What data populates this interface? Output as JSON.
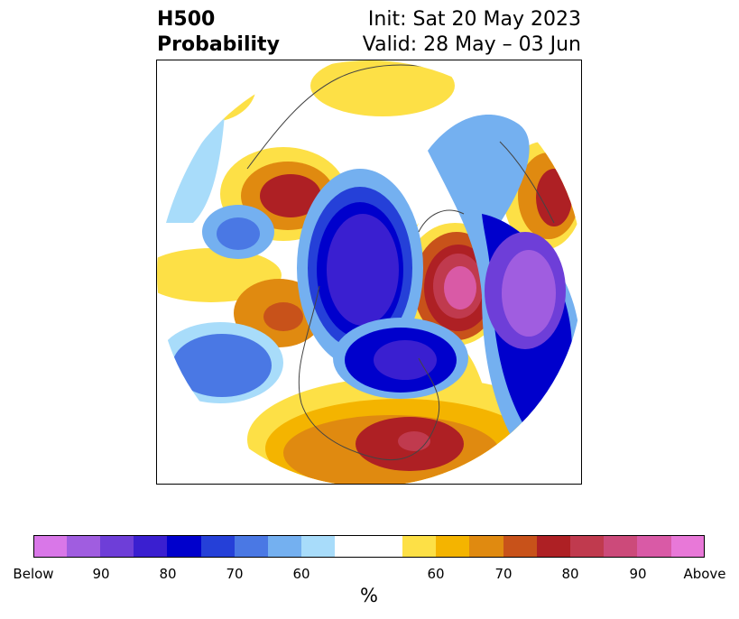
{
  "title": {
    "left_line1": "H500",
    "left_line2": "Probability",
    "right_line1": "Init: Sat 20 May 2023",
    "right_line2": "Valid: 28 May – 03 Jun"
  },
  "colorbar": {
    "unit": "%",
    "colors": [
      "#d977e8",
      "#a05de0",
      "#6e3ed8",
      "#3a1fd0",
      "#0000cc",
      "#2540d8",
      "#4a78e4",
      "#74b0f0",
      "#a8dcfa",
      "#ffffff",
      "#fde046",
      "#f4b400",
      "#e08a10",
      "#c8521a",
      "#ae2024",
      "#c03a4e",
      "#cc4a7a",
      "#d95aa6",
      "#e878d8"
    ],
    "tick_labels": [
      "Below",
      "90",
      "80",
      "70",
      "60",
      "60",
      "70",
      "80",
      "90",
      "Above"
    ]
  },
  "legend_categories": {
    "below": "Below",
    "above": "Above"
  }
}
